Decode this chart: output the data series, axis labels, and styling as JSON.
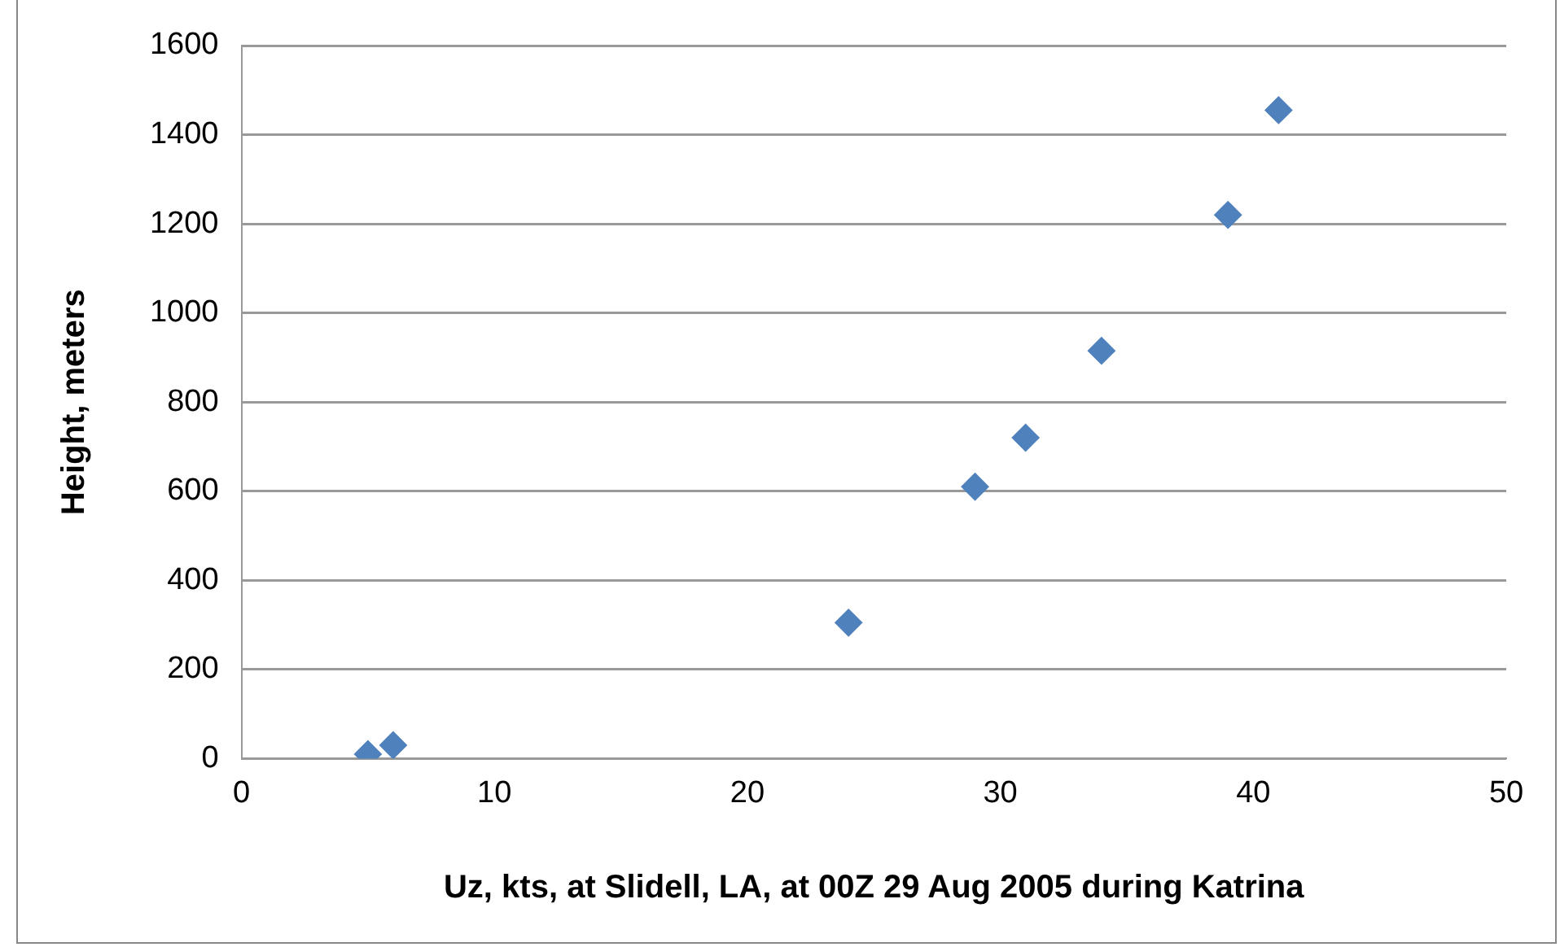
{
  "chart_data": {
    "type": "scatter",
    "xlabel": "Uz, kts, at Slidell, LA, at 00Z 29 Aug 2005 during Katrina",
    "ylabel": "Height, meters",
    "x": [
      5,
      6,
      24,
      29,
      31,
      34,
      39,
      41
    ],
    "series": [
      {
        "color": "#4f81bd",
        "values": [
          10,
          30,
          305,
          610,
          720,
          915,
          1220,
          1455
        ]
      }
    ],
    "xlim": [
      0,
      50
    ],
    "xticks": [
      0,
      10,
      20,
      30,
      40,
      50
    ],
    "ylim": [
      0,
      1600
    ],
    "yticks": [
      0,
      200,
      400,
      600,
      800,
      1000,
      1200,
      1400,
      1600
    ],
    "grid": "y",
    "marker": "diamond",
    "legend": false
  }
}
